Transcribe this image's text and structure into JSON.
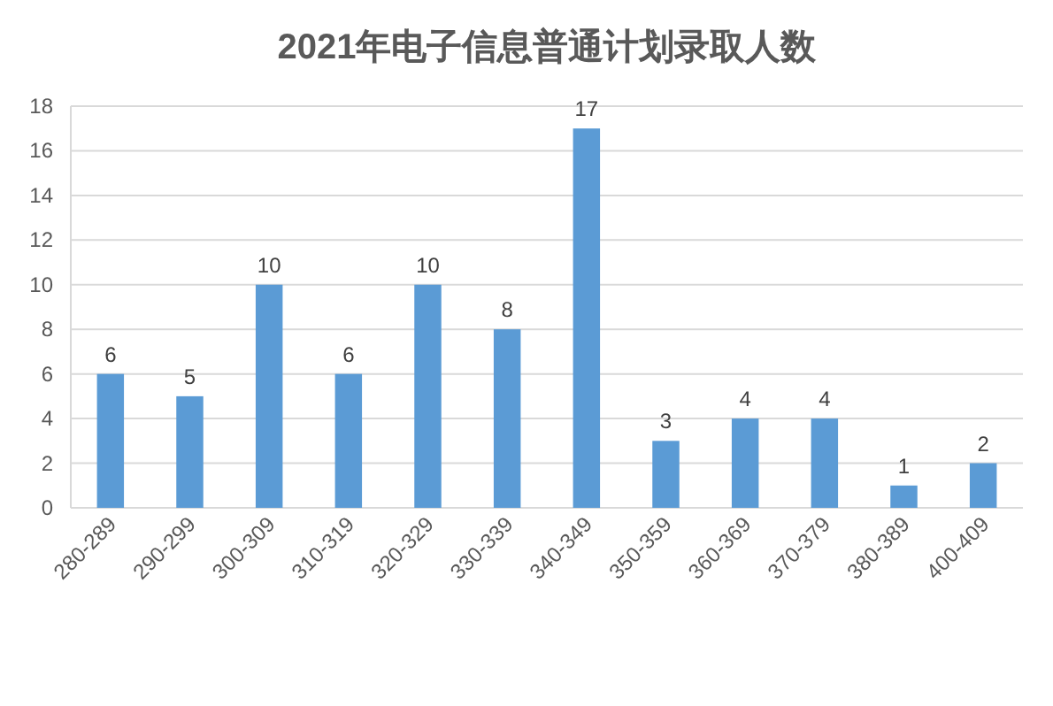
{
  "chart_data": {
    "type": "bar",
    "title": "2021年电子信息普通计划录取人数",
    "categories": [
      "280-289",
      "290-299",
      "300-309",
      "310-319",
      "320-329",
      "330-339",
      "340-349",
      "350-359",
      "360-369",
      "370-379",
      "380-389",
      "400-409"
    ],
    "values": [
      6,
      5,
      10,
      6,
      10,
      8,
      17,
      3,
      4,
      4,
      1,
      2
    ],
    "color": "#5b9bd5",
    "ylim": [
      0,
      18
    ],
    "yticks": [
      0,
      2,
      4,
      6,
      8,
      10,
      12,
      14,
      16,
      18
    ],
    "grid": "y",
    "data_labels": true
  }
}
